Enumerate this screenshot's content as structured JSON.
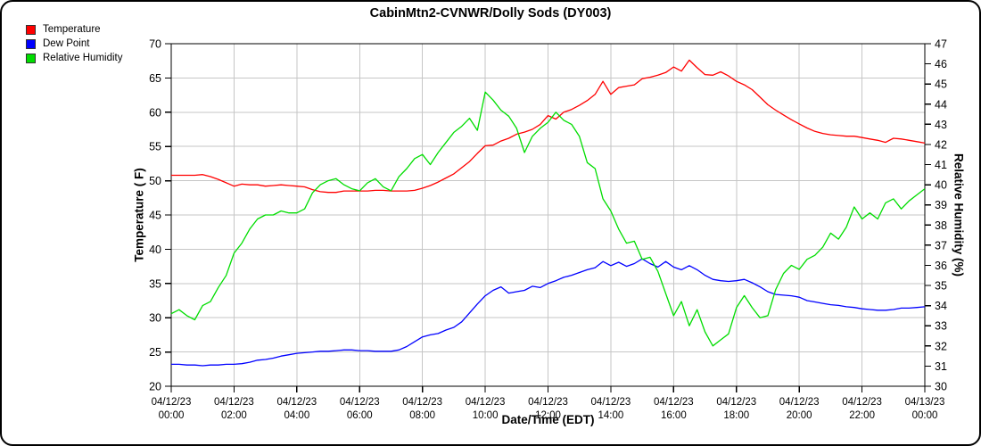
{
  "page": {
    "title": "CabinMtn2-CVNWR/Dolly Sods (DY003)"
  },
  "legend": {
    "position": "top-left",
    "items": [
      {
        "label": "Temperature",
        "color": "#ff0000"
      },
      {
        "label": "Dew Point",
        "color": "#0000ff"
      },
      {
        "label": "Relative Humidity",
        "color": "#00dd00"
      }
    ]
  },
  "chart_data": {
    "type": "line",
    "title": "CabinMtn2-CVNWR/Dolly Sods (DY003)",
    "grid": true,
    "gridline_color": "#c6c6c6",
    "frame_color": "#000000",
    "legend_position": "top-left",
    "sample_interval_minutes": 15,
    "x_axis": {
      "label": "Date/Time (EDT)",
      "start_hour": 0,
      "end_hour": 24,
      "tick_hours": [
        0,
        2,
        4,
        6,
        8,
        10,
        12,
        14,
        16,
        18,
        20,
        22,
        24
      ],
      "tick_labels": [
        [
          "04/12/23",
          "00:00"
        ],
        [
          "04/12/23",
          "02:00"
        ],
        [
          "04/12/23",
          "04:00"
        ],
        [
          "04/12/23",
          "06:00"
        ],
        [
          "04/12/23",
          "08:00"
        ],
        [
          "04/12/23",
          "10:00"
        ],
        [
          "04/12/23",
          "12:00"
        ],
        [
          "04/12/23",
          "14:00"
        ],
        [
          "04/12/23",
          "16:00"
        ],
        [
          "04/12/23",
          "18:00"
        ],
        [
          "04/12/23",
          "20:00"
        ],
        [
          "04/12/23",
          "22:00"
        ],
        [
          "04/13/23",
          "00:00"
        ]
      ]
    },
    "y_left": {
      "label": "Temperature ( F)",
      "min": 20,
      "max": 70,
      "tick_step": 5,
      "ticks": [
        20,
        25,
        30,
        35,
        40,
        45,
        50,
        55,
        60,
        65,
        70
      ]
    },
    "y_right": {
      "label": "Relative Humidity (%)",
      "min": 30,
      "max": 47,
      "tick_step": 1
    },
    "series": [
      {
        "name": "Temperature",
        "axis": "left",
        "color": "#ff0000",
        "unit": "F",
        "values": [
          50.8,
          50.8,
          50.8,
          50.8,
          50.9,
          50.6,
          50.2,
          49.7,
          49.2,
          49.5,
          49.4,
          49.4,
          49.2,
          49.3,
          49.4,
          49.3,
          49.2,
          49.1,
          48.7,
          48.4,
          48.3,
          48.3,
          48.5,
          48.5,
          48.5,
          48.5,
          48.6,
          48.6,
          48.5,
          48.5,
          48.5,
          48.6,
          48.9,
          49.3,
          49.8,
          50.4,
          51.0,
          51.9,
          52.8,
          54.0,
          55.1,
          55.2,
          55.8,
          56.2,
          56.8,
          57.1,
          57.5,
          58.2,
          59.5,
          59.0,
          60.0,
          60.4,
          61.0,
          61.7,
          62.6,
          64.5,
          62.6,
          63.6,
          63.8,
          64.0,
          64.9,
          65.1,
          65.4,
          65.8,
          66.6,
          66.0,
          67.6,
          66.5,
          65.5,
          65.4,
          65.9,
          65.3,
          64.5,
          64.0,
          63.3,
          62.2,
          61.1,
          60.3,
          59.6,
          58.9,
          58.3,
          57.7,
          57.2,
          56.9,
          56.7,
          56.6,
          56.5,
          56.5,
          56.3,
          56.1,
          55.9,
          55.6,
          56.2,
          56.1,
          55.9,
          55.7,
          55.5
        ]
      },
      {
        "name": "Dew Point",
        "axis": "left",
        "color": "#0000ff",
        "unit": "F",
        "values": [
          23.2,
          23.2,
          23.1,
          23.1,
          23.0,
          23.1,
          23.1,
          23.2,
          23.2,
          23.3,
          23.5,
          23.8,
          23.9,
          24.1,
          24.4,
          24.6,
          24.8,
          24.9,
          25.0,
          25.1,
          25.1,
          25.2,
          25.3,
          25.3,
          25.2,
          25.2,
          25.1,
          25.1,
          25.1,
          25.3,
          25.8,
          26.5,
          27.2,
          27.5,
          27.7,
          28.2,
          28.6,
          29.4,
          30.7,
          32.0,
          33.2,
          34.0,
          34.5,
          33.6,
          33.8,
          34.0,
          34.6,
          34.4,
          35.0,
          35.4,
          35.9,
          36.2,
          36.6,
          37.0,
          37.3,
          38.2,
          37.6,
          38.1,
          37.5,
          37.9,
          38.6,
          37.9,
          37.4,
          38.2,
          37.4,
          37.0,
          37.6,
          37.0,
          36.2,
          35.6,
          35.4,
          35.3,
          35.4,
          35.6,
          35.1,
          34.5,
          33.8,
          33.4,
          33.3,
          33.2,
          33.0,
          32.5,
          32.3,
          32.1,
          31.9,
          31.8,
          31.6,
          31.5,
          31.3,
          31.2,
          31.1,
          31.1,
          31.2,
          31.4,
          31.4,
          31.5,
          31.6
        ]
      },
      {
        "name": "Relative Humidity",
        "axis": "right",
        "color": "#00dd00",
        "unit": "%",
        "values": [
          33.6,
          33.8,
          33.5,
          33.3,
          34.0,
          34.2,
          34.9,
          35.5,
          36.6,
          37.1,
          37.8,
          38.3,
          38.5,
          38.5,
          38.7,
          38.6,
          38.6,
          38.8,
          39.6,
          40.0,
          40.2,
          40.3,
          40.0,
          39.8,
          39.7,
          40.1,
          40.3,
          39.9,
          39.7,
          40.4,
          40.8,
          41.3,
          41.5,
          41.0,
          41.6,
          42.1,
          42.6,
          42.9,
          43.3,
          42.7,
          44.6,
          44.2,
          43.7,
          43.4,
          42.8,
          41.6,
          42.4,
          42.8,
          43.1,
          43.6,
          43.2,
          43.0,
          42.4,
          41.1,
          40.8,
          39.3,
          38.7,
          37.8,
          37.1,
          37.2,
          36.3,
          36.4,
          35.7,
          34.6,
          33.5,
          34.2,
          33.0,
          33.8,
          32.7,
          32.0,
          32.3,
          32.6,
          33.9,
          34.5,
          33.9,
          33.4,
          33.5,
          34.8,
          35.6,
          36.0,
          35.8,
          36.3,
          36.5,
          36.9,
          37.6,
          37.3,
          37.9,
          38.9,
          38.3,
          38.6,
          38.3,
          39.1,
          39.3,
          38.8,
          39.2,
          39.5,
          39.8
        ]
      }
    ]
  }
}
